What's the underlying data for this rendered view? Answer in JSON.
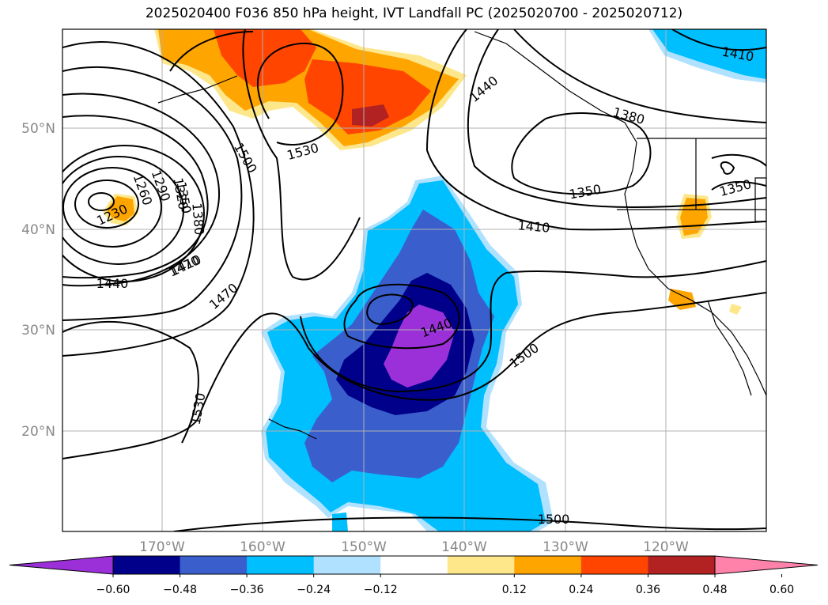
{
  "title": "2025020400 F036 850 hPa height, IVT Landfall PC (2025020700 - 2025020712)",
  "lat_labels": [
    "50°N",
    "40°N",
    "30°N",
    "20°N"
  ],
  "lon_labels": [
    "170°W",
    "160°W",
    "150°W",
    "140°W",
    "130°W",
    "120°W"
  ],
  "contour_labels": [
    "1500",
    "1530",
    "1440",
    "1380",
    "1350",
    "1410",
    "1410",
    "1470",
    "1230",
    "1260",
    "1290",
    "1320",
    "1350",
    "1380",
    "1410",
    "1440",
    "1470",
    "1440",
    "1500",
    "1530",
    "1500",
    "1350"
  ],
  "colorbar": {
    "ticks": [
      "−0.60",
      "−0.48",
      "−0.36",
      "−0.24",
      "−0.12",
      "0.12",
      "0.24",
      "0.36",
      "0.48",
      "0.60"
    ],
    "colors": [
      "#9b30d9",
      "#00008b",
      "#3a5fcd",
      "#00bfff",
      "#b0e2ff",
      "#ffffff",
      "#fde78a",
      "#ffa500",
      "#ff4500",
      "#b22222",
      "#ff82ab"
    ]
  }
}
